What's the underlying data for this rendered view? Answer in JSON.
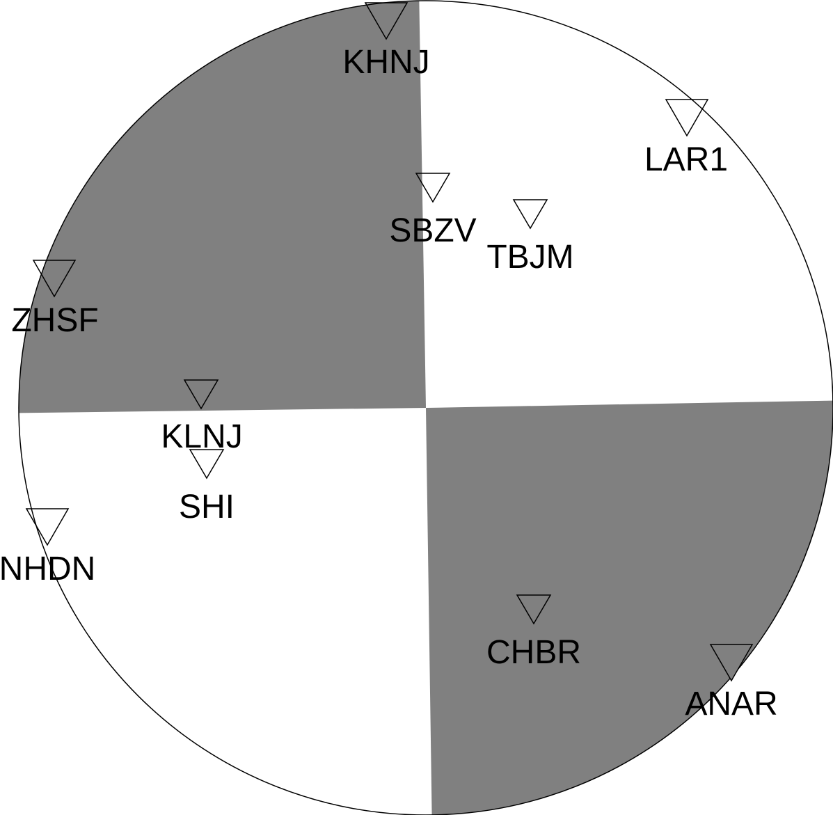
{
  "diagram": {
    "type": "focal-mechanism-beachball",
    "compressional_color": "#808080",
    "dilatational_color": "#ffffff",
    "outline_color": "#000000",
    "stations": [
      {
        "id": "KHNJ",
        "label": "KHNJ",
        "polarity": "dilatation"
      },
      {
        "id": "LAR1",
        "label": "LAR1",
        "polarity": "dilatation"
      },
      {
        "id": "SBZV",
        "label": "SBZV",
        "polarity": "dilatation"
      },
      {
        "id": "TBJM",
        "label": "TBJM",
        "polarity": "dilatation"
      },
      {
        "id": "ZHSF",
        "label": "ZHSF",
        "polarity": "dilatation"
      },
      {
        "id": "KLNJ",
        "label": "KLNJ",
        "polarity": "compression"
      },
      {
        "id": "SHI",
        "label": "SHI",
        "polarity": "dilatation"
      },
      {
        "id": "NHDN",
        "label": "NHDN",
        "polarity": "dilatation"
      },
      {
        "id": "CHBR",
        "label": "CHBR",
        "polarity": "compression"
      },
      {
        "id": "ANAR",
        "label": "ANAR",
        "polarity": "compression"
      }
    ]
  }
}
